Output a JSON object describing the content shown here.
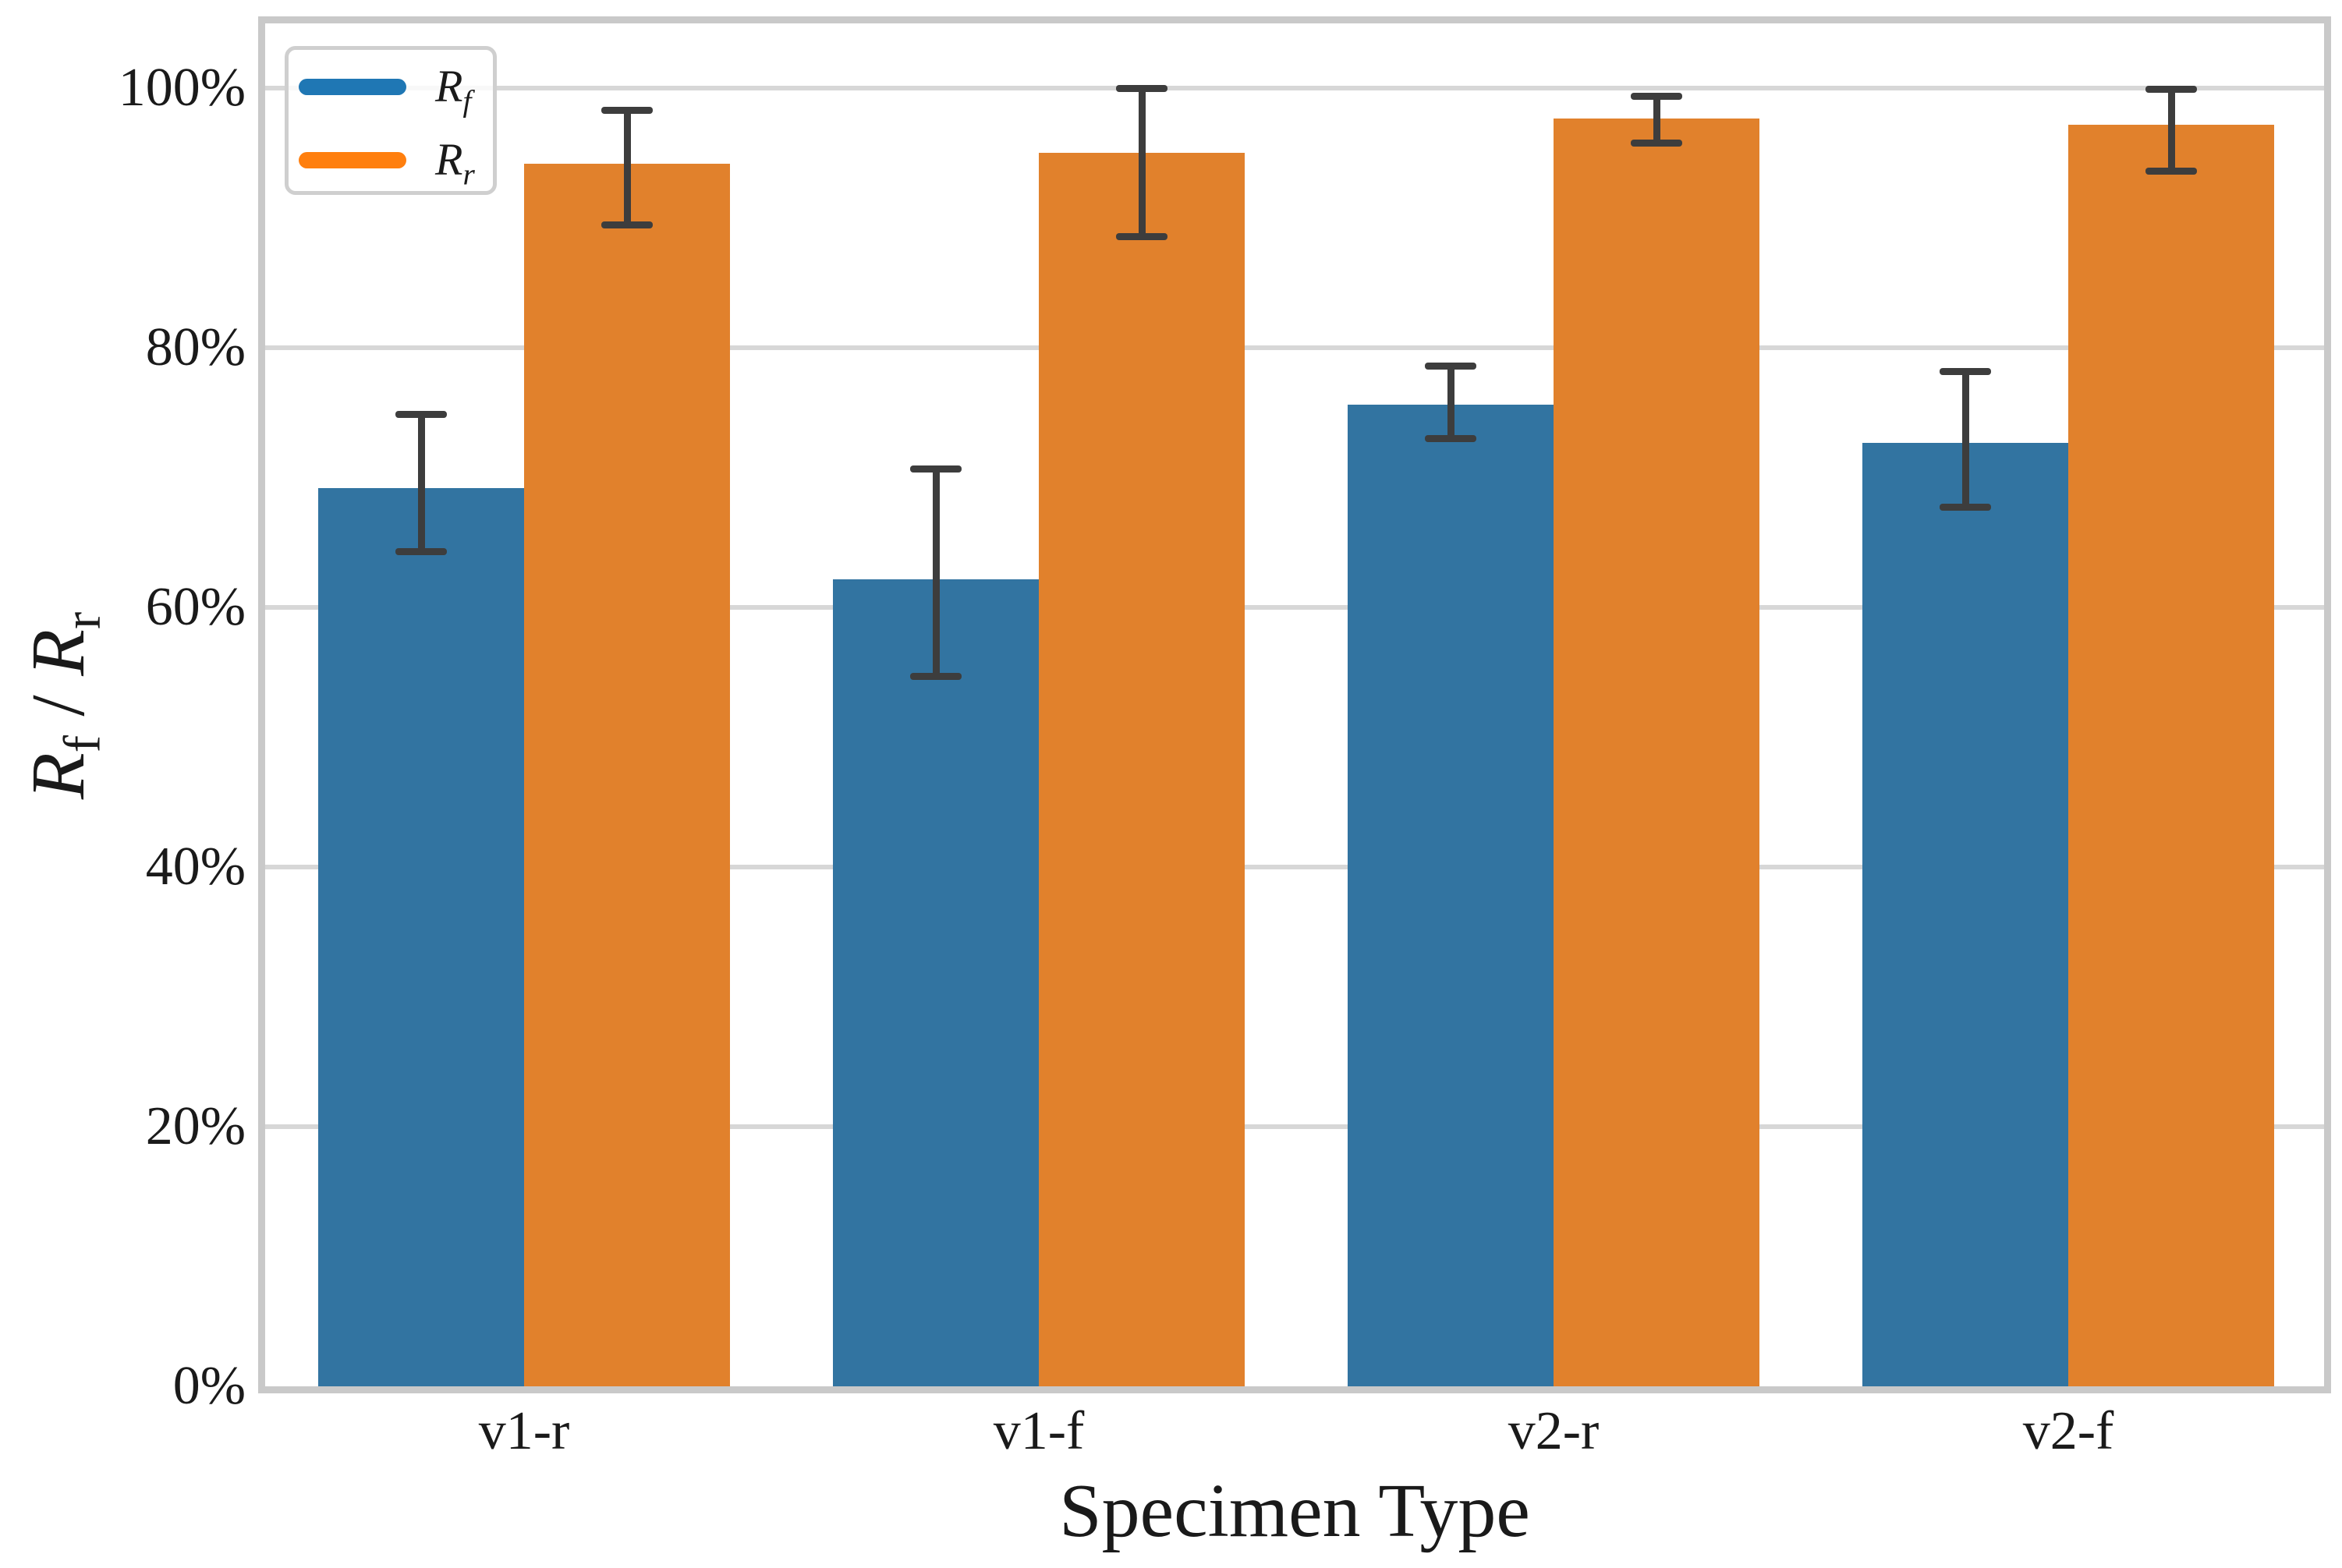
{
  "chart_data": {
    "type": "bar",
    "title": "",
    "xlabel": "Specimen Type",
    "ylabel": "R_f / R_r",
    "ylabel_parts": [
      {
        "text": "R",
        "italic": true
      },
      {
        "text": "f",
        "sub": true,
        "italic": false
      },
      {
        "text": " / ",
        "italic": false
      },
      {
        "text": "R",
        "italic": true
      },
      {
        "text": "r",
        "sub": true,
        "italic": false
      }
    ],
    "categories": [
      "v1-r",
      "v1-f",
      "v2-r",
      "v2-f"
    ],
    "series": [
      {
        "name": "R_f",
        "label_parts": [
          {
            "text": "R",
            "italic": true
          },
          {
            "text": "f",
            "sub": true,
            "italic": true
          }
        ],
        "bar_color": "#3274a1",
        "legend_color": "#1f77b4",
        "values": [
          69.2,
          62.2,
          75.6,
          72.7
        ],
        "err_low": [
          4.9,
          7.5,
          2.6,
          5.0
        ],
        "err_high": [
          5.7,
          8.5,
          3.0,
          5.5
        ]
      },
      {
        "name": "R_r",
        "label_parts": [
          {
            "text": "R",
            "italic": true
          },
          {
            "text": "r",
            "sub": true,
            "italic": true
          }
        ],
        "bar_color": "#e1812c",
        "legend_color": "#ff7f0e",
        "values": [
          94.2,
          95.0,
          97.7,
          97.2
        ],
        "err_low": [
          4.7,
          6.4,
          1.9,
          3.6
        ],
        "err_high": [
          4.1,
          5.0,
          1.7,
          2.7
        ]
      }
    ],
    "ylim": [
      0,
      105
    ],
    "yticks": [
      0,
      20,
      40,
      60,
      80,
      100
    ],
    "ytick_labels": [
      "0%",
      "20%",
      "40%",
      "60%",
      "80%",
      "100%"
    ],
    "grid": true,
    "legend_position": "upper-left",
    "colors": {
      "error_bar": "#3d3d3d",
      "grid": "#d7d7d7",
      "spine": "#c9c9c9",
      "text": "#1a1a1a",
      "background": "#ffffff"
    }
  }
}
